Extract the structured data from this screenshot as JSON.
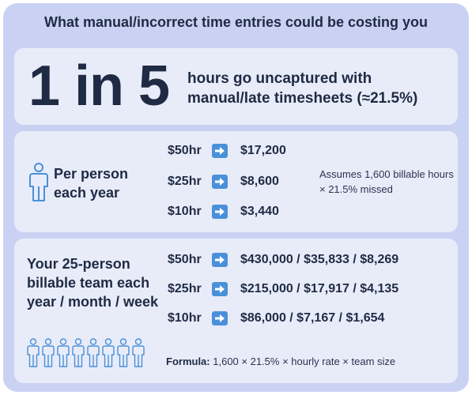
{
  "header": {
    "title": "What manual/incorrect time entries could be costing you"
  },
  "summary": {
    "ratio": "1 in 5",
    "description": "hours go uncaptured with manual/late timesheets (≈21.5%)"
  },
  "per_person": {
    "label": "Per person each year",
    "rows": [
      {
        "rate": "$50hr",
        "value": "$17,200"
      },
      {
        "rate": "$25hr",
        "value": "$8,600"
      },
      {
        "rate": "$10hr",
        "value": "$3,440"
      }
    ],
    "note": "Assumes 1,600 billable hours × 21.5% missed"
  },
  "team": {
    "label": "Your 25-person billable team each year / month / week",
    "rows": [
      {
        "rate": "$50hr",
        "value": "$430,000 / $35,833 / $8,269"
      },
      {
        "rate": "$25hr",
        "value": "$215,000 / $17,917 / $4,135"
      },
      {
        "rate": "$10hr",
        "value": "$86,000 / $7,167 / $1,654"
      }
    ],
    "formula_label": "Formula:",
    "formula_text": "1,600 × 21.5% × hourly rate × team size"
  },
  "colors": {
    "background": "#c9d2f2",
    "panel": "#e8ecf9",
    "accent": "#4a90d9",
    "text": "#1f2a44"
  },
  "icons": {
    "person": "person-outline-icon",
    "team": "team-outline-icon",
    "arrow": "arrow-right-icon"
  }
}
